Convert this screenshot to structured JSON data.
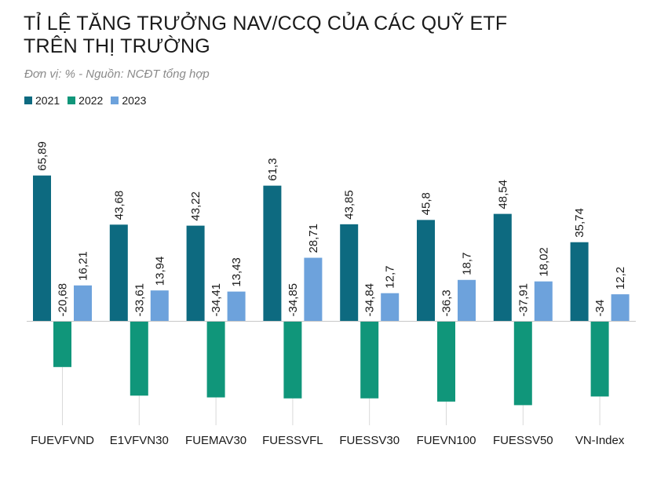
{
  "chart_data": {
    "type": "bar",
    "title_lines": [
      "TỈ LỆ TĂNG TRƯỞNG NAV/CCQ CỦA CÁC QUỸ ETF",
      "TRÊN THỊ TRƯỜNG"
    ],
    "subtitle": "Đơn vị: %   -   Nguồn: NCĐT tổng hợp",
    "categories": [
      "FUEVFVND",
      "E1VFVN30",
      "FUEMAV30",
      "FUESSVFL",
      "FUESSV30",
      "FUEVN100",
      "FUESSV50",
      "VN-Index"
    ],
    "series": [
      {
        "name": "2021",
        "color": "#0d6a80",
        "values": [
          65.89,
          43.68,
          43.22,
          61.3,
          43.85,
          45.8,
          48.54,
          35.74
        ],
        "labels": [
          "65,89",
          "43,68",
          "43,22",
          "61,3",
          "43,85",
          "45,8",
          "48,54",
          "35,74"
        ]
      },
      {
        "name": "2022",
        "color": "#10967a",
        "values": [
          -20.68,
          -33.61,
          -34.41,
          -34.85,
          -34.84,
          -36.3,
          -37.91,
          -34
        ],
        "labels": [
          "-20,68",
          "-33,61",
          "-34,41",
          "-34,85",
          "-34,84",
          "-36,3",
          "-37,91",
          "-34"
        ]
      },
      {
        "name": "2023",
        "color": "#6da2dc",
        "values": [
          16.21,
          13.94,
          13.43,
          28.71,
          12.7,
          18.7,
          18.02,
          12.2
        ],
        "labels": [
          "16,21",
          "13,94",
          "13,43",
          "28,71",
          "12,7",
          "18,7",
          "18,02",
          "12,2"
        ]
      }
    ],
    "ylim": [
      -40,
      70
    ],
    "grid": false,
    "legend_position": "top-left"
  }
}
